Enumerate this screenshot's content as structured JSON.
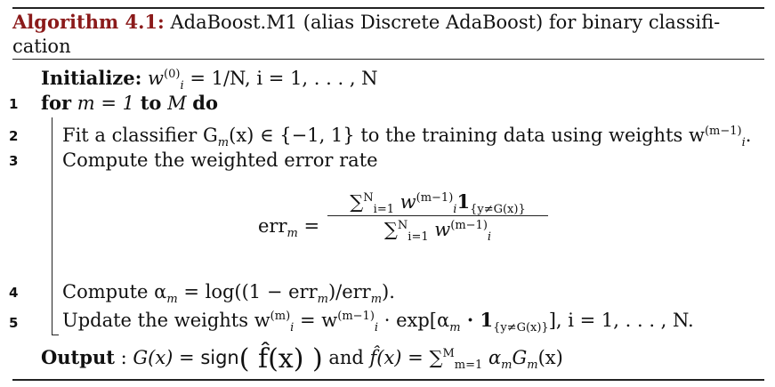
{
  "algorithm": {
    "label": "Algorithm 4.1:",
    "title": "AdaBoost.M1 (alias Discrete AdaBoost) for binary classifi-cation"
  },
  "lines": {
    "init": {
      "keyword": "Initialize:",
      "expr": "w",
      "sup": "(0)",
      "sub": "i",
      "rest": " = 1/N, i = 1, . . . , N"
    },
    "l1": {
      "num": "1",
      "kw_for": "for",
      "mid": " m = 1 ",
      "kw_to": "to",
      "end": " M ",
      "kw_do": "do"
    },
    "l2": {
      "num": "2",
      "text": "Fit a classifier G",
      "sub_m": "m",
      "rest": "(x) ∈ {−1, 1} to the training data using weights w",
      "sup": "(m−1)",
      "sub": "i",
      "end": "."
    },
    "l3": {
      "num": "3",
      "text": "Compute the weighted error rate"
    },
    "formula": {
      "lhs": "err",
      "lhs_sub": "m",
      "eq": " = ",
      "num": "∑",
      "num_sup": "N",
      "num_sub": "i=1",
      "num_w": " w",
      "num_wsup": "(m−1)",
      "num_wsub": "i",
      "num_ind": "1",
      "num_indsub": "{y≠G(x)}",
      "den": "∑",
      "den_sup": "N",
      "den_sub": "i=1",
      "den_w": " w",
      "den_wsup": "(m−1)",
      "den_wsub": "i"
    },
    "l4": {
      "num": "4",
      "text": "Compute α",
      "sub_m": "m",
      "rest": " = log((1 − err",
      "sub_m2": "m",
      "rest2": ")/err",
      "sub_m3": "m",
      "end": ")."
    },
    "l5": {
      "num": "5",
      "text": "Update the weights w",
      "sup1": "(m)",
      "sub1": "i",
      "mid": " = w",
      "sup2": "(m−1)",
      "sub2": "i",
      "rest": " · exp[α",
      "sub_m": "m",
      "rest2": " · 1",
      "indsub": "{y≠G(x)}",
      "end": "], i = 1, . . . , N."
    },
    "output": {
      "keyword": "Output",
      "colon": " : ",
      "g": "G(x) = ",
      "sign": "sign",
      "paren": "( f̂(x) )",
      "and": " and ",
      "f": "f̂(x) = ∑",
      "fsup": "M",
      "fsub": "m=1",
      "frest": " α",
      "fsub2": "m",
      "fend": "G",
      "fsub3": "m",
      "fend2": "(x)"
    }
  }
}
